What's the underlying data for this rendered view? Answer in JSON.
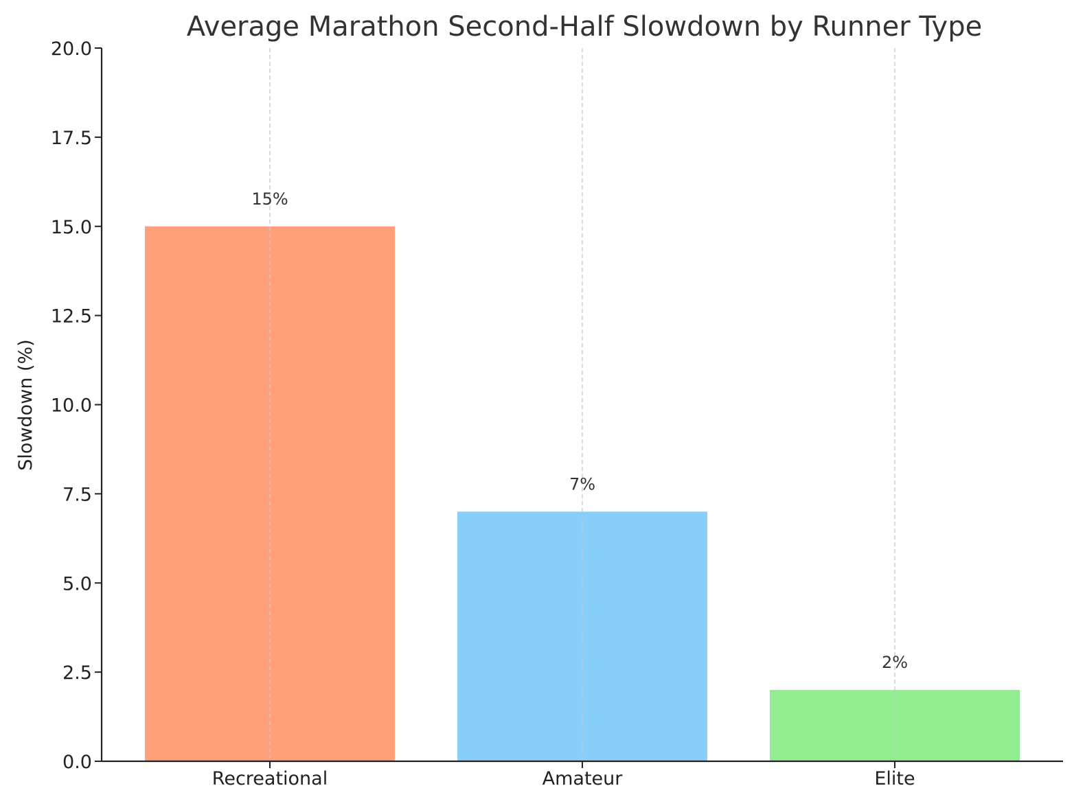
{
  "chart_data": {
    "type": "bar",
    "title": "Average Marathon Second-Half Slowdown by Runner Type",
    "xlabel": "",
    "ylabel": "Slowdown (%)",
    "categories": [
      "Recreational",
      "Amateur",
      "Elite"
    ],
    "values": [
      15,
      7,
      2
    ],
    "value_labels": [
      "15%",
      "7%",
      "2%"
    ],
    "colors": [
      "#FFA07A",
      "#87CEFA",
      "#90EE90"
    ],
    "ylim": [
      0,
      20
    ],
    "yticks": [
      0,
      2.5,
      5,
      7.5,
      10,
      12.5,
      15,
      17.5,
      20
    ],
    "ytick_labels": [
      "0.0",
      "2.5",
      "5.0",
      "7.5",
      "10.0",
      "12.5",
      "15.0",
      "17.5",
      "20.0"
    ],
    "grid": "x-dashed",
    "legend": "none"
  }
}
